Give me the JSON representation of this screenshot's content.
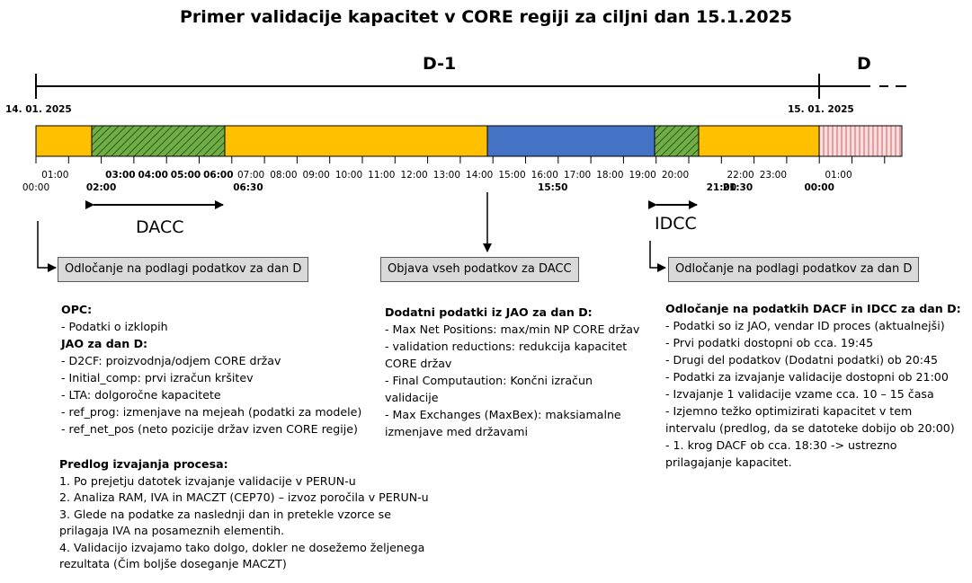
{
  "title": "Primer validacije kapacitet v CORE regiji za ciljni dan 15.1.2025",
  "period_d1": "D-1",
  "period_d": "D",
  "date_start": "14. 01. 2025",
  "date_end": "15. 01. 2025",
  "colors": {
    "orange": "#ffc000",
    "green": "#70ad47",
    "blue": "#4472c4",
    "pink": "#f4cccc",
    "pink_hatch": "#e07b7b",
    "box_fill": "#d9d9d9"
  },
  "hour_labels": [
    "01:00",
    "03:00",
    "04:00",
    "05:00",
    "06:00",
    "07:00",
    "08:00",
    "09:00",
    "10:00",
    "11:00",
    "12:00",
    "13:00",
    "14:00",
    "15:00",
    "16:00",
    "17:00",
    "18:00",
    "19:00",
    "20:00",
    "21:00",
    "22:00",
    "23:00",
    "01:00"
  ],
  "bold_hours": [
    "03:00",
    "04:00",
    "05:00",
    "06:00"
  ],
  "marker_labels": [
    "00:00",
    "02:00",
    "06:30",
    "15:50",
    "21:00",
    "21:30",
    "00:00"
  ],
  "bold_markers": [
    "02:00",
    "06:30",
    "15:50",
    "21:00",
    "21:30",
    "00:00"
  ],
  "dacc_label": "DACC",
  "idcc_label": "IDCC",
  "boxes": {
    "left": "Odločanje na podlagi podatkov za dan D",
    "middle": "Objava vseh podatkov za DACC",
    "right": "Odločanje na podlagi podatkov za dan D"
  },
  "left_block": {
    "opc_title": "OPC:",
    "opc_items": [
      "- Podatki o izklopih"
    ],
    "jao_title": "JAO za dan D:",
    "jao_items": [
      "- D2CF: proizvodnja/odjem CORE držav",
      "- Initial_comp: prvi izračun kršitev",
      "- LTA: dolgoročne kapacitete",
      "- ref_prog: izmenjave na mejeah (podatki za modele)",
      "- ref_net_pos (neto pozicije držav izven CORE regije)"
    ],
    "proc_title": "Predlog izvajanja procesa:",
    "proc_items": [
      "1. Po prejetju datotek izvajanje validacije v PERUN-u",
      "2. Analiza RAM, IVA in MACZT (CEP70) – izvoz poročila v PERUN-u",
      "3. Glede na podatke za naslednji dan in pretekle vzorce se",
      "prilagaja IVA  na posameznih elementih.",
      "4. Validacijo izvajamo tako dolgo, dokler ne   dosežemo željenega",
      "rezultata (Čim boljše doseganje MACZT)"
    ]
  },
  "middle_block": {
    "title": "Dodatni podatki iz JAO za dan D:",
    "items": [
      "- Max Net Positions: max/min NP CORE držav",
      "- validation reductions: redukcija kapacitet",
      "CORE držav",
      "- Final Computaution: Končni izračun",
      "validacije",
      "- Max Exchanges (MaxBex): maksiamalne",
      "izmenjave med državami"
    ]
  },
  "right_block": {
    "title": "Odločanje na podatkih DACF in IDCC za dan D:",
    "items": [
      "- Podatki so iz JAO, vendar ID proces (aktualnejši)",
      "- Prvi podatki dostopni ob cca. 19:45",
      "- Drugi del podatkov (Dodatni podatki) ob 20:45",
      "- Podatki za izvajanje validacije dostopni ob 21:00",
      "- Izvajanje 1 validacije vzame cca. 10 – 15 časa",
      "- Izjemno težko optimizirati kapacitet v tem",
      "intervalu (predlog, da se datoteke dobijo ob 20:00)",
      "- 1. krog DACF ob cca. 18:30 -> ustrezno",
      "prilagajanje kapacitet."
    ]
  }
}
